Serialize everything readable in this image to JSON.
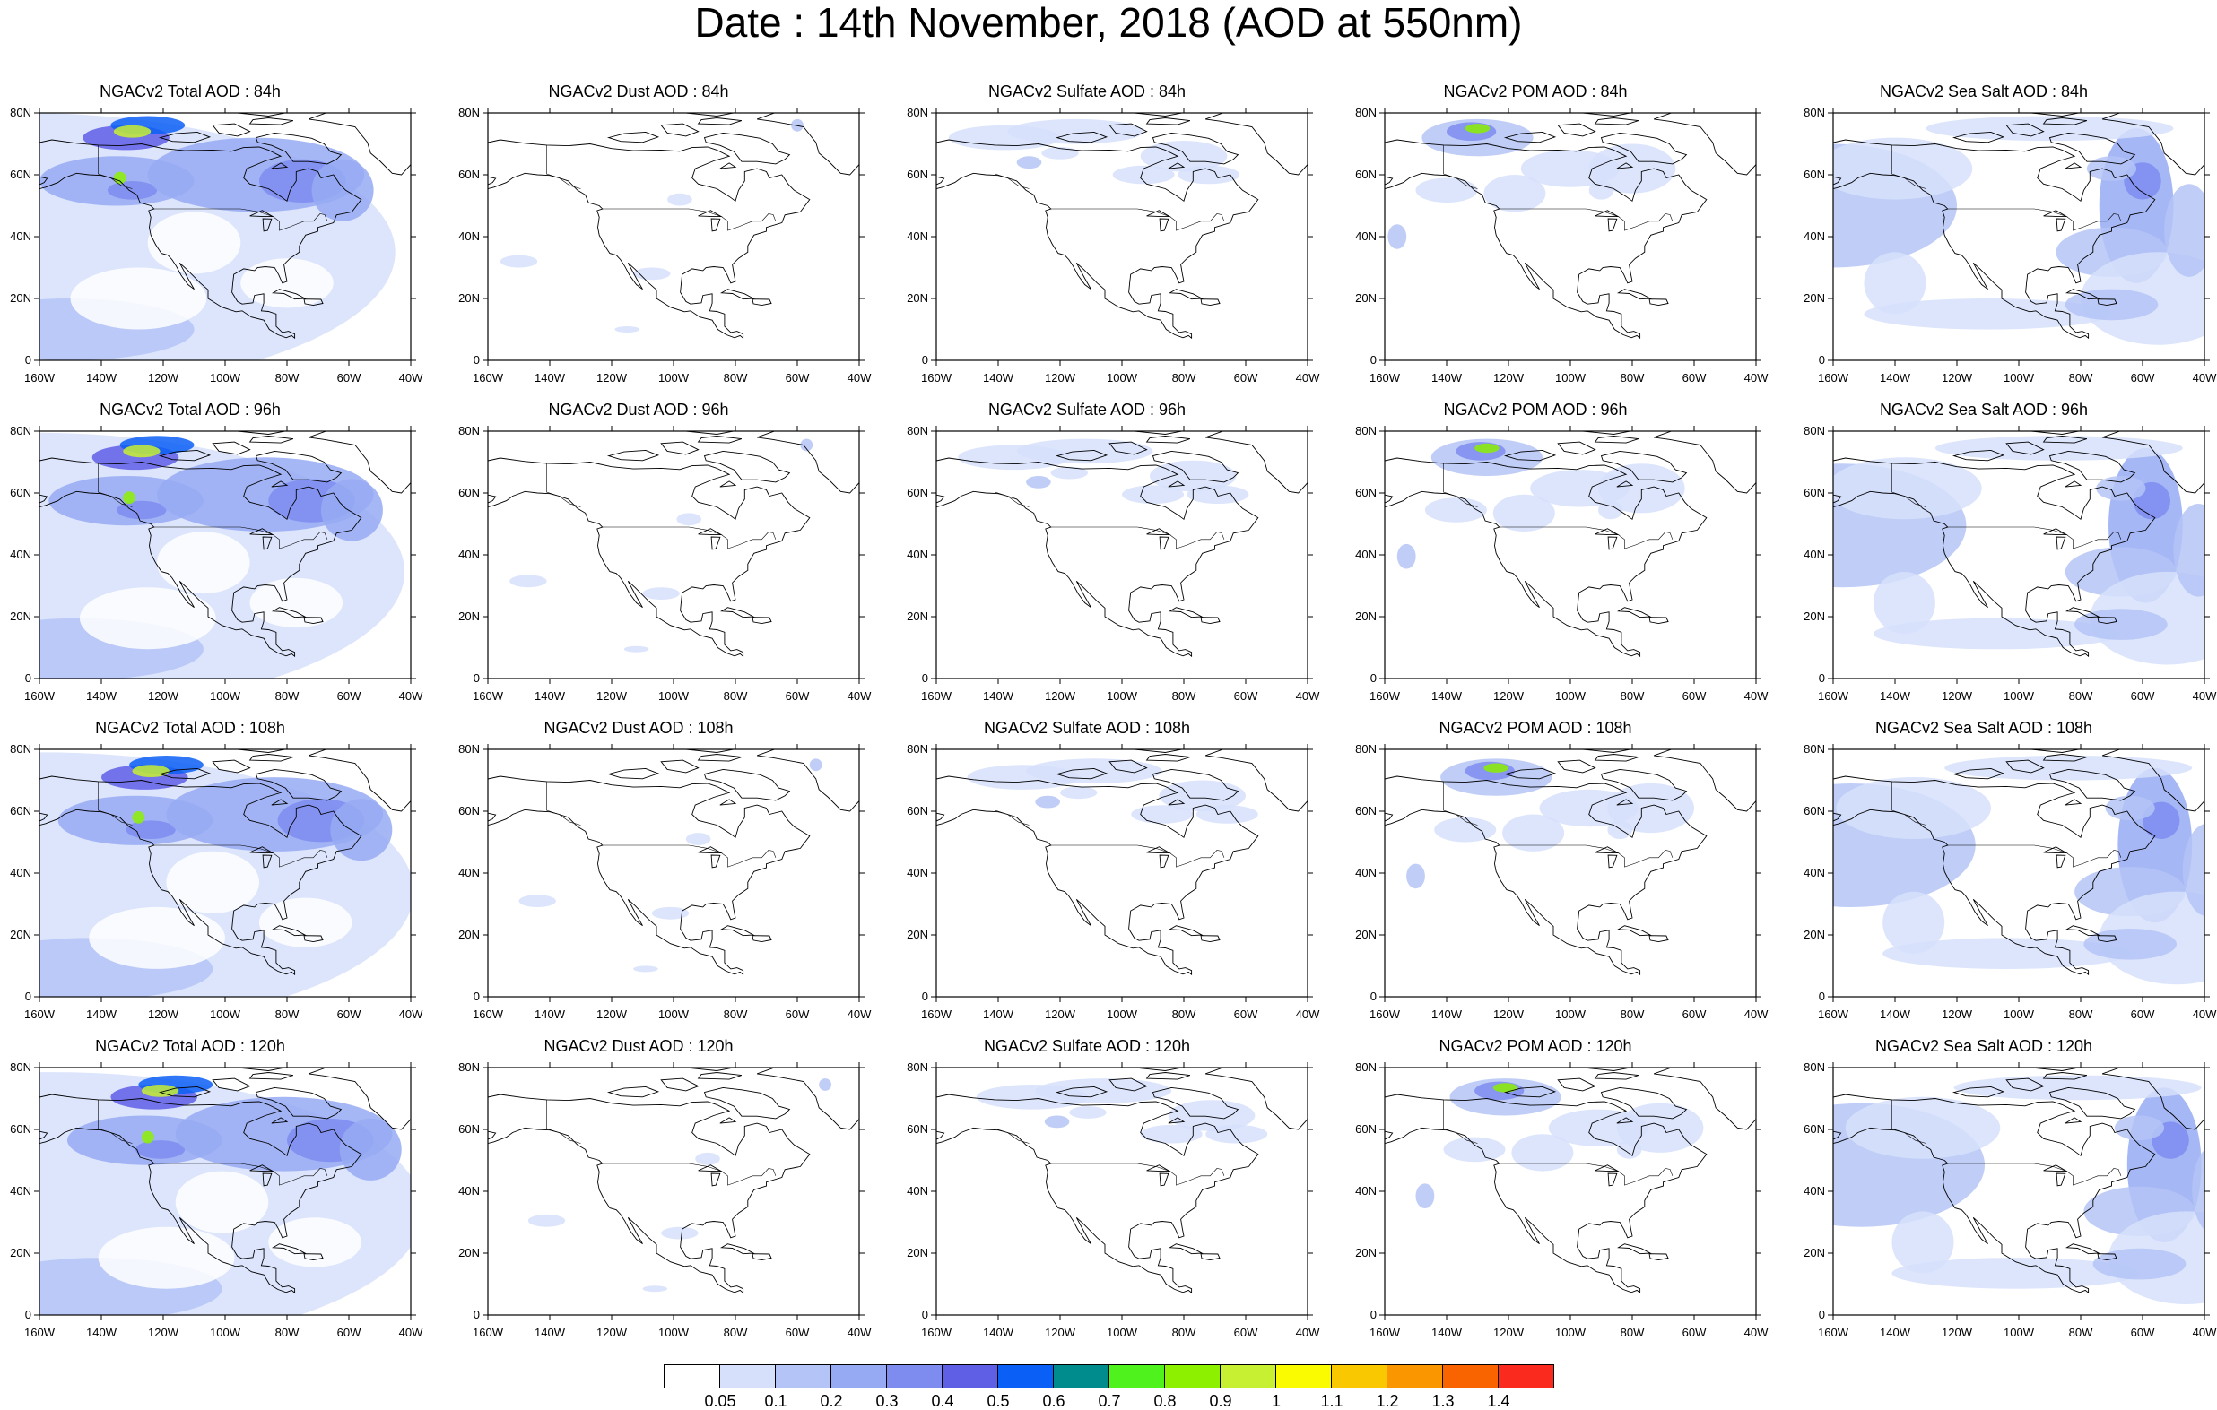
{
  "title": "Date : 14th November, 2018 (AOD at 550nm)",
  "axes": {
    "lat_ticks": [
      "80N",
      "60N",
      "40N",
      "20N",
      "0"
    ],
    "lon_ticks": [
      "160W",
      "140W",
      "120W",
      "100W",
      "80W",
      "60W",
      "40W"
    ]
  },
  "panels": [
    {
      "title": "NGACv2 Total AOD : 84h",
      "species": "total",
      "hour": 84
    },
    {
      "title": "NGACv2 Dust AOD : 84h",
      "species": "dust",
      "hour": 84
    },
    {
      "title": "NGACv2 Sulfate AOD : 84h",
      "species": "sulfate",
      "hour": 84
    },
    {
      "title": "NGACv2 POM AOD : 84h",
      "species": "pom",
      "hour": 84
    },
    {
      "title": "NGACv2 Sea Salt AOD : 84h",
      "species": "seasalt",
      "hour": 84
    },
    {
      "title": "NGACv2 Total AOD : 96h",
      "species": "total",
      "hour": 96
    },
    {
      "title": "NGACv2 Dust AOD : 96h",
      "species": "dust",
      "hour": 96
    },
    {
      "title": "NGACv2 Sulfate AOD : 96h",
      "species": "sulfate",
      "hour": 96
    },
    {
      "title": "NGACv2 POM AOD : 96h",
      "species": "pom",
      "hour": 96
    },
    {
      "title": "NGACv2 Sea Salt AOD : 96h",
      "species": "seasalt",
      "hour": 96
    },
    {
      "title": "NGACv2 Total AOD : 108h",
      "species": "total",
      "hour": 108
    },
    {
      "title": "NGACv2 Dust AOD : 108h",
      "species": "dust",
      "hour": 108
    },
    {
      "title": "NGACv2 Sulfate AOD : 108h",
      "species": "sulfate",
      "hour": 108
    },
    {
      "title": "NGACv2 POM AOD : 108h",
      "species": "pom",
      "hour": 108
    },
    {
      "title": "NGACv2 Sea Salt AOD : 108h",
      "species": "seasalt",
      "hour": 108
    },
    {
      "title": "NGACv2 Total AOD : 120h",
      "species": "total",
      "hour": 120
    },
    {
      "title": "NGACv2 Dust AOD : 120h",
      "species": "dust",
      "hour": 120
    },
    {
      "title": "NGACv2 Sulfate AOD : 120h",
      "species": "sulfate",
      "hour": 120
    },
    {
      "title": "NGACv2 POM AOD : 120h",
      "species": "pom",
      "hour": 120
    },
    {
      "title": "NGACv2 Sea Salt  AOD : 120h",
      "species": "seasalt",
      "hour": 120
    }
  ],
  "legend": {
    "colors": [
      "#ffffff",
      "#d6e0fb",
      "#b4c4f6",
      "#96aaf3",
      "#7e8cf0",
      "#5f5fe6",
      "#0a5ff6",
      "#008c8c",
      "#50f21e",
      "#8cf000",
      "#c8f032",
      "#fafa00",
      "#fac800",
      "#fa9600",
      "#fa6400",
      "#fa2a1e"
    ],
    "labels": [
      "0.05",
      "0.1",
      "0.2",
      "0.3",
      "0.4",
      "0.5",
      "0.6",
      "0.7",
      "0.8",
      "0.9",
      "1",
      "1.1",
      "1.2",
      "1.3",
      "1.4"
    ]
  }
}
